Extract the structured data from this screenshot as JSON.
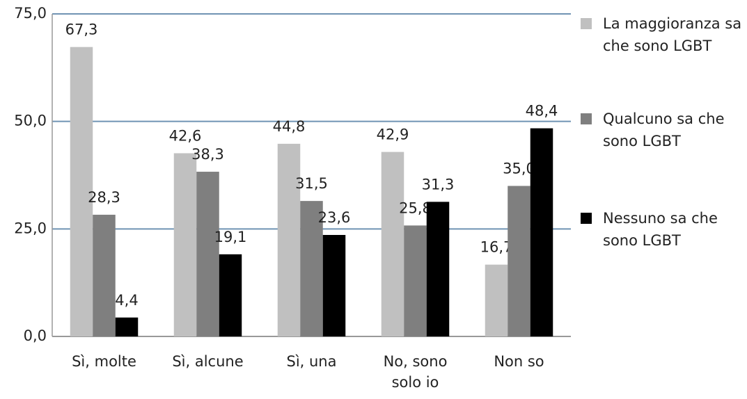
{
  "chart_data": {
    "type": "bar",
    "categories": [
      "Sì, molte",
      "Sì, alcune",
      "Sì, una",
      "No, sono solo io",
      "Non so"
    ],
    "series": [
      {
        "name": "La maggioranza sa che sono LGBT",
        "color": "#c0c0c0",
        "values": [
          67.3,
          42.6,
          44.8,
          42.9,
          16.7
        ],
        "value_labels": [
          "67,3",
          "42,6",
          "44,8",
          "42,9",
          "16,7"
        ]
      },
      {
        "name": "Qualcuno sa che sono LGBT",
        "color": "#7f7f7f",
        "values": [
          28.3,
          38.3,
          31.5,
          25.8,
          35.0
        ],
        "value_labels": [
          "28,3",
          "38,3",
          "31,5",
          "25,8",
          "35,0"
        ]
      },
      {
        "name": "Nessuno sa che sono LGBT",
        "color": "#000000",
        "values": [
          4.4,
          19.1,
          23.6,
          31.3,
          48.4
        ],
        "value_labels": [
          "4,4",
          "19,1",
          "23,6",
          "31,3",
          "48,4"
        ]
      }
    ],
    "ylim": [
      0,
      75
    ],
    "yticks": [
      {
        "value": 0,
        "label": "0,0"
      },
      {
        "value": 25,
        "label": "25,0"
      },
      {
        "value": 50,
        "label": "50,0"
      },
      {
        "value": 75,
        "label": "75,0"
      }
    ],
    "grid": true,
    "legend": "right"
  }
}
